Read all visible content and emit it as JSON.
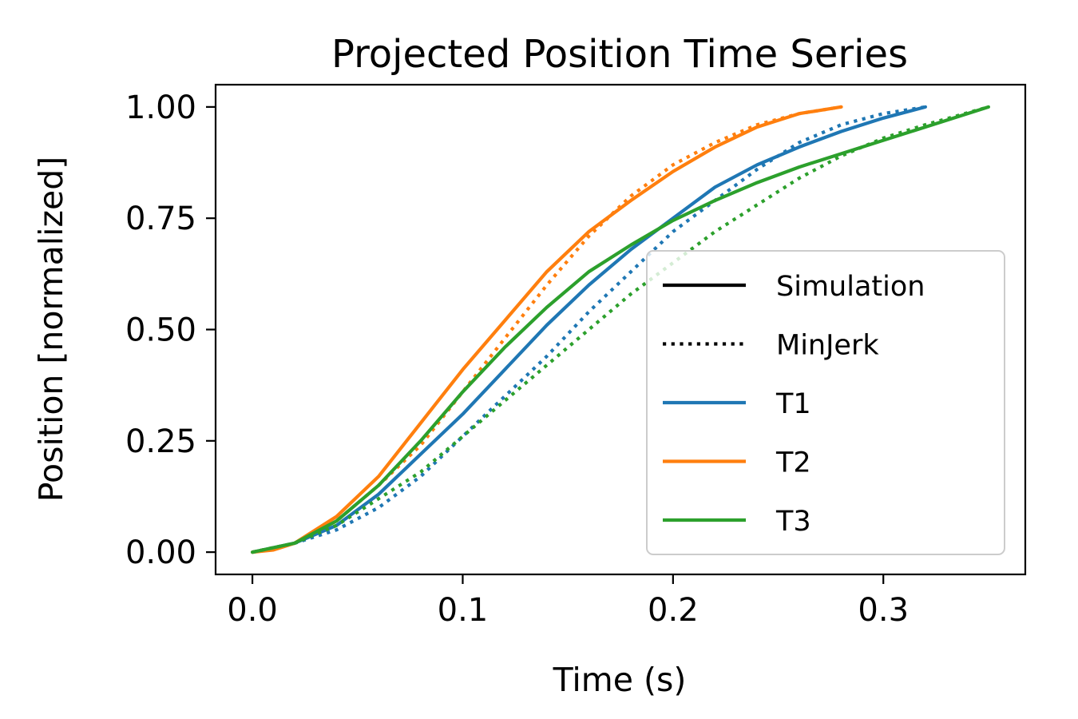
{
  "chart_data": {
    "type": "line",
    "title": "Projected Position Time Series",
    "xlabel": "Time (s)",
    "ylabel": "Position [normalized]",
    "xlim": [
      -0.0175,
      0.3675
    ],
    "ylim": [
      -0.05,
      1.05
    ],
    "xticks": [
      0.0,
      0.1,
      0.2,
      0.3
    ],
    "xtick_labels": [
      "0.0",
      "0.1",
      "0.2",
      "0.3"
    ],
    "yticks": [
      0.0,
      0.25,
      0.5,
      0.75,
      1.0
    ],
    "ytick_labels": [
      "0.00",
      "0.25",
      "0.50",
      "0.75",
      "1.00"
    ],
    "grid": false,
    "legend_position": "lower right",
    "legend": [
      {
        "label": "Simulation",
        "color": "#000000",
        "style": "solid"
      },
      {
        "label": "MinJerk",
        "color": "#000000",
        "style": "dotted"
      },
      {
        "label": "T1",
        "color": "#1f77b4",
        "style": "solid"
      },
      {
        "label": "T2",
        "color": "#ff7f0e",
        "style": "solid"
      },
      {
        "label": "T3",
        "color": "#2ca02c",
        "style": "solid"
      }
    ],
    "series": [
      {
        "group": "T1",
        "kind": "Simulation",
        "color": "#1f77b4",
        "style": "solid",
        "x": [
          0.0,
          0.02,
          0.04,
          0.06,
          0.08,
          0.1,
          0.12,
          0.14,
          0.16,
          0.18,
          0.2,
          0.22,
          0.24,
          0.26,
          0.28,
          0.3,
          0.32
        ],
        "y": [
          0.0,
          0.02,
          0.06,
          0.13,
          0.22,
          0.31,
          0.41,
          0.51,
          0.6,
          0.68,
          0.75,
          0.82,
          0.87,
          0.91,
          0.945,
          0.975,
          1.0
        ]
      },
      {
        "group": "T1",
        "kind": "MinJerk",
        "color": "#1f77b4",
        "style": "dotted",
        "x": [
          0.0,
          0.02,
          0.04,
          0.06,
          0.08,
          0.1,
          0.12,
          0.14,
          0.16,
          0.18,
          0.2,
          0.22,
          0.24,
          0.26,
          0.28,
          0.3,
          0.32
        ],
        "y": [
          0.0,
          0.02,
          0.05,
          0.1,
          0.17,
          0.26,
          0.35,
          0.44,
          0.54,
          0.63,
          0.72,
          0.79,
          0.86,
          0.92,
          0.96,
          0.985,
          1.0
        ]
      },
      {
        "group": "T2",
        "kind": "Simulation",
        "color": "#ff7f0e",
        "style": "solid",
        "x": [
          0.0,
          0.01,
          0.02,
          0.04,
          0.06,
          0.08,
          0.1,
          0.12,
          0.14,
          0.16,
          0.18,
          0.2,
          0.22,
          0.24,
          0.26,
          0.28
        ],
        "y": [
          0.0,
          0.005,
          0.02,
          0.08,
          0.17,
          0.29,
          0.41,
          0.52,
          0.63,
          0.72,
          0.79,
          0.855,
          0.91,
          0.955,
          0.985,
          1.0
        ]
      },
      {
        "group": "T2",
        "kind": "MinJerk",
        "color": "#ff7f0e",
        "style": "dotted",
        "x": [
          0.0,
          0.02,
          0.04,
          0.06,
          0.08,
          0.1,
          0.12,
          0.14,
          0.16,
          0.18,
          0.2,
          0.22,
          0.24,
          0.26,
          0.28
        ],
        "y": [
          0.0,
          0.02,
          0.07,
          0.15,
          0.24,
          0.36,
          0.48,
          0.6,
          0.71,
          0.8,
          0.87,
          0.92,
          0.96,
          0.985,
          1.0
        ]
      },
      {
        "group": "T3",
        "kind": "Simulation",
        "color": "#2ca02c",
        "style": "solid",
        "x": [
          0.0,
          0.02,
          0.04,
          0.06,
          0.08,
          0.1,
          0.12,
          0.14,
          0.16,
          0.18,
          0.2,
          0.22,
          0.24,
          0.26,
          0.28,
          0.3,
          0.32,
          0.35
        ],
        "y": [
          0.0,
          0.02,
          0.07,
          0.15,
          0.25,
          0.36,
          0.46,
          0.55,
          0.63,
          0.69,
          0.745,
          0.79,
          0.83,
          0.865,
          0.895,
          0.925,
          0.955,
          1.0
        ]
      },
      {
        "group": "T3",
        "kind": "MinJerk",
        "color": "#2ca02c",
        "style": "dotted",
        "x": [
          0.0,
          0.02,
          0.04,
          0.06,
          0.08,
          0.1,
          0.12,
          0.14,
          0.16,
          0.18,
          0.2,
          0.22,
          0.24,
          0.26,
          0.28,
          0.3,
          0.32,
          0.35
        ],
        "y": [
          0.0,
          0.02,
          0.06,
          0.12,
          0.18,
          0.26,
          0.34,
          0.42,
          0.5,
          0.58,
          0.65,
          0.72,
          0.78,
          0.84,
          0.89,
          0.93,
          0.96,
          1.0
        ]
      }
    ]
  }
}
